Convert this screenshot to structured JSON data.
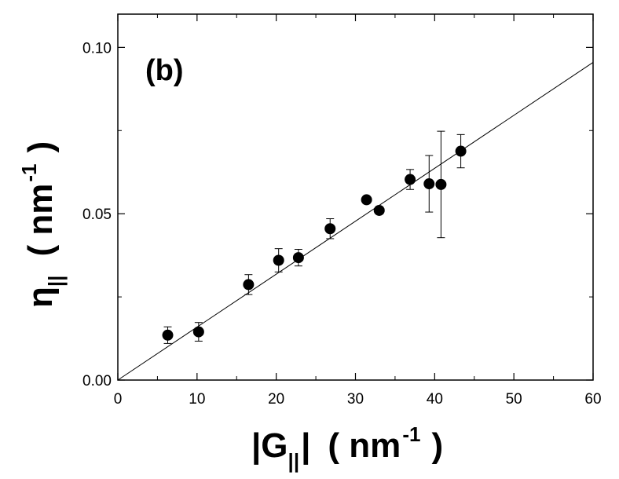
{
  "chart_data": {
    "type": "scatter",
    "panel_label": "(b)",
    "xlabel": {
      "open_bar": "|G",
      "subscript": "||",
      "close_bar": "|",
      "unit_open": "( nm",
      "unit_exp": "-1",
      "unit_close": ")"
    },
    "ylabel": {
      "symbol": "η",
      "subscript": "||",
      "unit_open": "( nm",
      "unit_exp": "-1",
      "unit_close": ")"
    },
    "xlim": [
      0,
      60
    ],
    "ylim": [
      0.0,
      0.11
    ],
    "x_ticks": [
      0,
      10,
      20,
      30,
      40,
      50,
      60
    ],
    "x_tick_labels": [
      "0",
      "10",
      "20",
      "30",
      "40",
      "50",
      "60"
    ],
    "y_ticks": [
      0.0,
      0.05,
      0.1
    ],
    "y_tick_labels": [
      "0.00",
      "0.05",
      "0.10"
    ],
    "points": [
      {
        "x": 6.3,
        "y": 0.0135,
        "err": 0.0025
      },
      {
        "x": 10.2,
        "y": 0.0145,
        "err": 0.0028
      },
      {
        "x": 16.5,
        "y": 0.0287,
        "err": 0.003
      },
      {
        "x": 20.3,
        "y": 0.036,
        "err": 0.0035
      },
      {
        "x": 22.8,
        "y": 0.0368,
        "err": 0.0025
      },
      {
        "x": 26.8,
        "y": 0.0455,
        "err": 0.003
      },
      {
        "x": 31.4,
        "y": 0.0542,
        "err": 0.001
      },
      {
        "x": 33.0,
        "y": 0.051,
        "err": 0.001
      },
      {
        "x": 36.9,
        "y": 0.0603,
        "err": 0.003
      },
      {
        "x": 39.3,
        "y": 0.059,
        "err": 0.0085
      },
      {
        "x": 40.8,
        "y": 0.0588,
        "err": 0.016
      },
      {
        "x": 43.3,
        "y": 0.0688,
        "err": 0.005
      }
    ],
    "fit_line": {
      "x": [
        0,
        60
      ],
      "y": [
        0.0,
        0.0955
      ]
    },
    "grid": false,
    "legend": "none"
  }
}
